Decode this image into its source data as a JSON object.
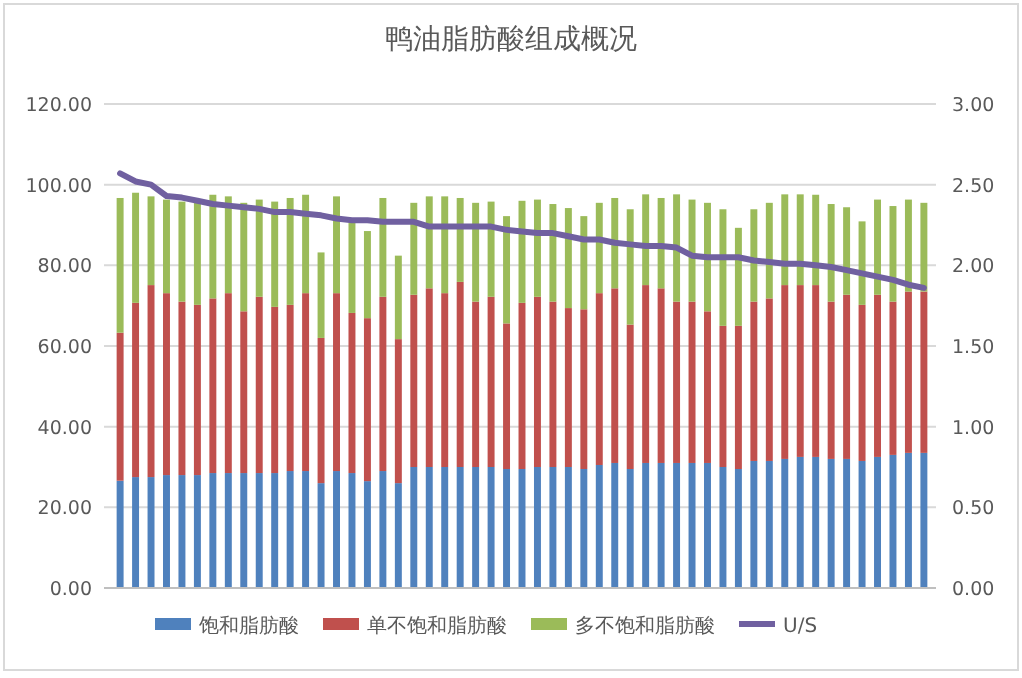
{
  "chart_data": {
    "type": "bar",
    "title": "鸭油脂肪酸组成概况",
    "stacked": true,
    "grid": "y",
    "legend": "bottom",
    "categories": [
      null,
      null,
      null,
      null,
      null,
      null,
      null,
      null,
      null,
      null,
      null,
      null,
      null,
      null,
      null,
      null,
      null,
      null,
      null,
      null,
      null,
      null,
      null,
      null,
      null,
      null,
      null,
      null,
      null,
      null,
      null,
      null,
      null,
      null,
      null,
      null,
      null,
      null,
      null,
      null,
      null,
      null,
      null,
      null,
      null,
      null,
      null,
      null,
      null,
      null,
      null,
      null,
      null
    ],
    "ylim": [
      0,
      120
    ],
    "yticks": [
      {
        "value": 0,
        "label": "0.00"
      },
      {
        "value": 20,
        "label": "20.00"
      },
      {
        "value": 40,
        "label": "40.00"
      },
      {
        "value": 60,
        "label": "60.00"
      },
      {
        "value": 80,
        "label": "80.00"
      },
      {
        "value": 100,
        "label": "100.00"
      },
      {
        "value": 120,
        "label": "120.00"
      }
    ],
    "y2lim": [
      0,
      3
    ],
    "y2ticks": [
      {
        "value": 0,
        "label": "0.00"
      },
      {
        "value": 0.5,
        "label": "0.50"
      },
      {
        "value": 1,
        "label": "1.00"
      },
      {
        "value": 1.5,
        "label": "1.50"
      },
      {
        "value": 2,
        "label": "2.00"
      },
      {
        "value": 2.5,
        "label": "2.50"
      },
      {
        "value": 3,
        "label": "3.00"
      }
    ],
    "series": [
      {
        "name": "饱和脂肪酸",
        "color": "#4f81bd",
        "values": [
          26.6,
          27.5,
          27.5,
          28,
          28,
          28,
          28.5,
          28.5,
          28.5,
          28.5,
          28.5,
          29,
          29,
          26,
          29,
          28.5,
          26.5,
          29,
          26,
          30,
          30,
          30,
          30,
          30,
          30,
          29.5,
          29.5,
          30,
          30,
          30,
          29.5,
          30.5,
          31,
          29.5,
          31,
          31,
          31,
          31,
          31,
          30,
          29.5,
          31.5,
          31.5,
          32,
          32.5,
          32.5,
          32,
          32,
          31.5,
          32.5,
          33,
          33.5,
          33.5
        ]
      },
      {
        "name": "单不饱和脂肪酸",
        "color": "#c0504d",
        "values": [
          36.7,
          43.2,
          47.6,
          45.1,
          43,
          42.2,
          43.3,
          44.6,
          40.1,
          43.7,
          41.2,
          41.2,
          44.1,
          36,
          44.1,
          39.7,
          40.4,
          43.2,
          35.7,
          42.7,
          44.3,
          43.1,
          45.9,
          41,
          42.2,
          36.1,
          41.2,
          42.2,
          41,
          39.4,
          39.6,
          42.6,
          43.3,
          35.8,
          44.1,
          43.3,
          40,
          40,
          37.6,
          35,
          35.5,
          39.5,
          40.3,
          43.1,
          42.6,
          42.6,
          39,
          40.7,
          38.7,
          40.2,
          38,
          40,
          40
        ]
      },
      {
        "name": "多不饱和脂肪酸",
        "color": "#9bbb59",
        "values": [
          33.4,
          27.3,
          22,
          23.2,
          24.8,
          25.3,
          25.7,
          24,
          26.9,
          24.1,
          26.1,
          26.5,
          24.4,
          21.2,
          24,
          22.4,
          21.6,
          24.5,
          20.7,
          22.8,
          22.8,
          24,
          20.8,
          24.5,
          23.6,
          26.6,
          25.3,
          24.1,
          24.2,
          24.8,
          23.1,
          22.4,
          22.4,
          28.6,
          22.5,
          22.4,
          26.6,
          25.3,
          26.9,
          28.9,
          24.3,
          22.9,
          23.7,
          22.5,
          22.5,
          22.4,
          24.2,
          21.7,
          20.7,
          23.6,
          23.7,
          22.8,
          22
        ]
      },
      {
        "name": "U/S",
        "type": "line",
        "axis": "y2",
        "color": "#7060a0",
        "values": [
          2.57,
          2.52,
          2.5,
          2.43,
          2.42,
          2.4,
          2.38,
          2.37,
          2.36,
          2.35,
          2.33,
          2.33,
          2.32,
          2.31,
          2.29,
          2.28,
          2.28,
          2.27,
          2.27,
          2.27,
          2.24,
          2.24,
          2.24,
          2.24,
          2.24,
          2.22,
          2.21,
          2.2,
          2.2,
          2.18,
          2.16,
          2.16,
          2.14,
          2.13,
          2.12,
          2.12,
          2.11,
          2.06,
          2.05,
          2.05,
          2.05,
          2.03,
          2.02,
          2.01,
          2.01,
          2,
          1.99,
          1.97,
          1.95,
          1.93,
          1.91,
          1.88,
          1.86
        ]
      }
    ]
  }
}
